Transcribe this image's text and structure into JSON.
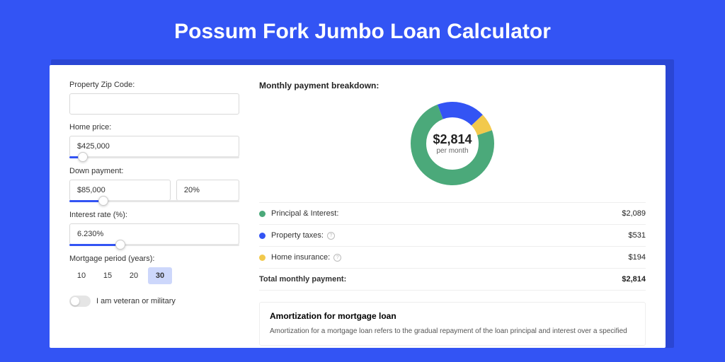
{
  "title": "Possum Fork Jumbo Loan Calculator",
  "colors": {
    "page_bg": "#3354f4",
    "accent": "#3354f4",
    "principal": "#4ba97a",
    "taxes": "#3354f4",
    "insurance": "#f2c94c"
  },
  "form": {
    "zip": {
      "label": "Property Zip Code:",
      "value": ""
    },
    "home_price": {
      "label": "Home price:",
      "value": "$425,000",
      "slider_pct": 8
    },
    "down_payment": {
      "label": "Down payment:",
      "amount": "$85,000",
      "percent": "20%",
      "slider_pct": 20
    },
    "interest": {
      "label": "Interest rate (%):",
      "value": "6.230%",
      "slider_pct": 30
    },
    "period": {
      "label": "Mortgage period (years):",
      "options": [
        "10",
        "15",
        "20",
        "30"
      ],
      "selected": "30"
    },
    "veteran": {
      "label": "I am veteran or military",
      "checked": false
    }
  },
  "breakdown": {
    "title": "Monthly payment breakdown:",
    "donut": {
      "amount": "$2,814",
      "sub": "per month",
      "slices": [
        {
          "key": "taxes",
          "pct": 18.9,
          "color": "#3354f4"
        },
        {
          "key": "insurance",
          "pct": 6.9,
          "color": "#f2c94c"
        },
        {
          "key": "principal",
          "pct": 74.2,
          "color": "#4ba97a"
        }
      ]
    },
    "rows": [
      {
        "dot": "#4ba97a",
        "label": "Principal & Interest:",
        "info": false,
        "value": "$2,089"
      },
      {
        "dot": "#3354f4",
        "label": "Property taxes:",
        "info": true,
        "value": "$531"
      },
      {
        "dot": "#f2c94c",
        "label": "Home insurance:",
        "info": true,
        "value": "$194"
      }
    ],
    "total": {
      "label": "Total monthly payment:",
      "value": "$2,814"
    }
  },
  "amortization": {
    "title": "Amortization for mortgage loan",
    "text": "Amortization for a mortgage loan refers to the gradual repayment of the loan principal and interest over a specified"
  }
}
